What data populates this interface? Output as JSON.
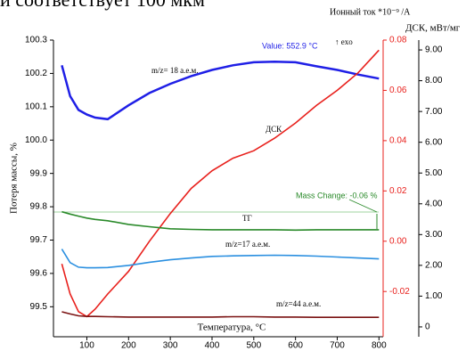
{
  "caption": "и соответствует 100 мкм",
  "chart_data": {
    "type": "line",
    "xlabel": "Температура, °C",
    "ylabel": "Потеря массы, %",
    "y2label": "ДСК, мВт/мг",
    "y3label": "Ионный ток *10⁻⁹ /A",
    "x": [
      40,
      60,
      80,
      100,
      120,
      150,
      200,
      250,
      300,
      350,
      400,
      450,
      500,
      550,
      600,
      650,
      700,
      750,
      800
    ],
    "xlim": [
      20,
      810
    ],
    "xticks": [
      100,
      200,
      300,
      400,
      500,
      600,
      700,
      800
    ],
    "ylim": [
      99.41,
      100.3
    ],
    "yticks": [
      99.5,
      99.6,
      99.7,
      99.8,
      99.9,
      {
        "value": 100.0,
        "label": "100.0"
      },
      100.1,
      100.2,
      100.3
    ],
    "y2lim": [
      -0.038,
      0.08
    ],
    "y2ticks": [
      -0.02,
      {
        "value": 0,
        "label": "0.00"
      },
      0.02,
      0.04,
      0.06,
      0.08
    ],
    "y2color": "#e8201c",
    "y3lim": [
      -0.32,
      9.32
    ],
    "y3ticks": [
      0,
      {
        "value": 1,
        "label": "1.00"
      },
      {
        "value": 2,
        "label": "2.00"
      },
      {
        "value": 3,
        "label": "3.00"
      },
      {
        "value": 4,
        "label": "4.00"
      },
      {
        "value": 5,
        "label": "5.00"
      },
      {
        "value": 6,
        "label": "6.00"
      },
      {
        "value": 7,
        "label": "7.00"
      },
      {
        "value": 8,
        "label": "8.00"
      },
      {
        "value": 9,
        "label": "9.00"
      }
    ],
    "series": [
      {
        "name": "m/z= 18 а.е.м.",
        "color": "#1f1fe6",
        "axis": "y3",
        "values": [
          8.5,
          7.5,
          7.05,
          6.9,
          6.8,
          6.75,
          7.2,
          7.6,
          7.9,
          8.15,
          8.35,
          8.5,
          8.6,
          8.62,
          8.6,
          8.47,
          8.35,
          8.2,
          8.07
        ]
      },
      {
        "name": "ДСК",
        "color": "#e8201c",
        "axis": "y2",
        "values": [
          -0.009,
          -0.021,
          -0.028,
          -0.03,
          -0.027,
          -0.021,
          -0.012,
          0,
          0.011,
          0.021,
          0.028,
          0.033,
          0.036,
          0.041,
          0.047,
          0.054,
          0.06,
          0.067,
          0.076
        ]
      },
      {
        "name": "ТГ",
        "color": "#2a8a2a",
        "axis": "y",
        "values": [
          99.785,
          99.778,
          99.772,
          99.766,
          99.762,
          99.758,
          99.747,
          99.74,
          99.734,
          99.732,
          99.731,
          99.731,
          99.731,
          99.731,
          99.73,
          99.731,
          99.731,
          99.731,
          99.731
        ]
      },
      {
        "name": "m/z=17 а.е.м.",
        "color": "#2a8fe0",
        "axis": "y3",
        "values": [
          2.53,
          2.09,
          1.94,
          1.92,
          1.92,
          1.93,
          2.0,
          2.1,
          2.18,
          2.24,
          2.29,
          2.31,
          2.32,
          2.33,
          2.32,
          2.3,
          2.27,
          2.24,
          2.21
        ]
      },
      {
        "name": "m/z=44 а.е.м.",
        "color": "#7a1212",
        "axis": "y3",
        "values": [
          0.49,
          0.42,
          0.36,
          0.34,
          0.34,
          0.33,
          0.32,
          0.32,
          0.32,
          0.32,
          0.32,
          0.33,
          0.33,
          0.32,
          0.32,
          0.31,
          0.31,
          0.31,
          0.31
        ]
      }
    ],
    "annotations": [
      "Value: 552.9 °C",
      "↑ exo",
      "Mass Change: -0.06 %"
    ]
  }
}
